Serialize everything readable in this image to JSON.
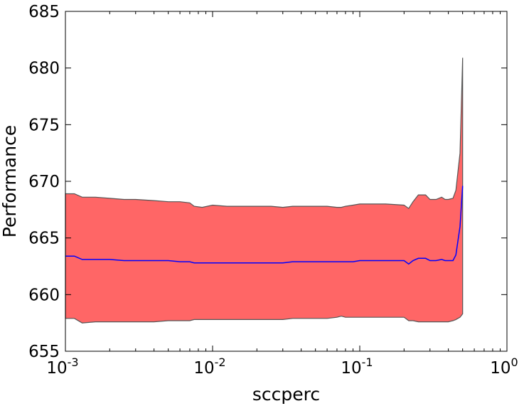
{
  "chart_data": {
    "type": "area",
    "xlabel": "sccperc",
    "ylabel": "Performance",
    "xscale": "log",
    "xlim": [
      0.001,
      1
    ],
    "ylim": [
      655,
      685
    ],
    "grid": false,
    "xticks": [
      {
        "value": 0.001,
        "base": "10",
        "exp": "-3"
      },
      {
        "value": 0.01,
        "base": "10",
        "exp": "-2"
      },
      {
        "value": 0.1,
        "base": "10",
        "exp": "-1"
      },
      {
        "value": 1,
        "base": "10",
        "exp": "0"
      }
    ],
    "yticks": [
      655,
      660,
      665,
      670,
      675,
      680,
      685
    ],
    "band_color": "#ff6666",
    "band_edge_color": "#555555",
    "mean_color": "#0000ff",
    "x": [
      0.001,
      0.00115,
      0.0013,
      0.0016,
      0.002,
      0.0025,
      0.003,
      0.004,
      0.005,
      0.006,
      0.007,
      0.0075,
      0.0085,
      0.01,
      0.0125,
      0.015,
      0.02,
      0.025,
      0.03,
      0.035,
      0.04,
      0.05,
      0.06,
      0.07,
      0.075,
      0.08,
      0.09,
      0.1,
      0.125,
      0.15,
      0.2,
      0.215,
      0.23,
      0.25,
      0.28,
      0.3,
      0.33,
      0.36,
      0.38,
      0.4,
      0.43,
      0.45,
      0.48,
      0.5
    ],
    "upper": [
      668.9,
      668.9,
      668.6,
      668.6,
      668.5,
      668.4,
      668.4,
      668.3,
      668.2,
      668.2,
      668.1,
      667.8,
      667.7,
      667.9,
      667.8,
      667.8,
      667.8,
      667.8,
      667.7,
      667.8,
      667.8,
      667.8,
      667.8,
      667.7,
      667.7,
      667.8,
      667.9,
      668.0,
      668.0,
      668.0,
      667.9,
      667.6,
      668.2,
      668.8,
      668.8,
      668.4,
      668.4,
      668.6,
      668.4,
      668.4,
      668.5,
      669.2,
      672.5,
      680.9
    ],
    "mean": [
      663.4,
      663.4,
      663.1,
      663.1,
      663.1,
      663.0,
      663.0,
      663.0,
      663.0,
      662.9,
      662.9,
      662.8,
      662.8,
      662.8,
      662.8,
      662.8,
      662.8,
      662.8,
      662.8,
      662.9,
      662.9,
      662.9,
      662.9,
      662.9,
      662.9,
      662.9,
      662.9,
      663.0,
      663.0,
      663.0,
      663.0,
      662.7,
      663.0,
      663.2,
      663.2,
      663.0,
      663.0,
      663.1,
      663.0,
      663.0,
      663.0,
      663.5,
      666.0,
      669.6
    ],
    "lower": [
      657.9,
      657.9,
      657.5,
      657.6,
      657.6,
      657.6,
      657.6,
      657.6,
      657.7,
      657.7,
      657.7,
      657.8,
      657.8,
      657.8,
      657.8,
      657.8,
      657.8,
      657.8,
      657.8,
      657.9,
      657.9,
      657.9,
      657.9,
      658.0,
      658.1,
      658.0,
      658.0,
      658.0,
      658.0,
      658.0,
      658.0,
      657.7,
      657.7,
      657.6,
      657.6,
      657.6,
      657.6,
      657.6,
      657.6,
      657.6,
      657.7,
      657.8,
      658.0,
      658.3
    ]
  }
}
